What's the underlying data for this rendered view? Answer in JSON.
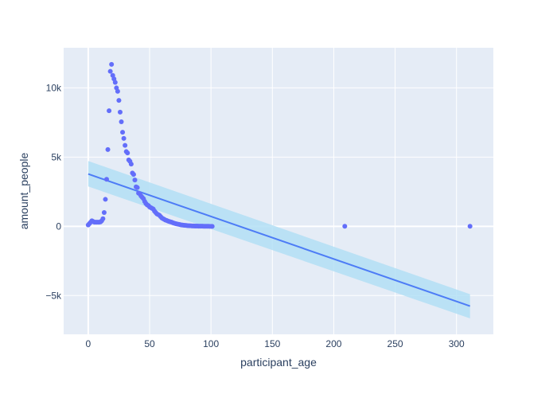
{
  "chart_data": {
    "type": "scatter",
    "title": "",
    "xlabel": "participant_age",
    "ylabel": "amount_people",
    "xlim": [
      -20,
      330
    ],
    "ylim": [
      -7800,
      12900
    ],
    "x_ticks": [
      0,
      50,
      100,
      150,
      200,
      250,
      300
    ],
    "x_tick_labels": [
      "0",
      "50",
      "100",
      "150",
      "200",
      "250",
      "300"
    ],
    "y_ticks": [
      -5000,
      0,
      5000,
      10000
    ],
    "y_tick_labels": [
      "−5k",
      "0",
      "5k",
      "10k"
    ],
    "grid": true,
    "legend": "none",
    "marker_color": "#636efa",
    "trend_color": "#4d7cf6",
    "band_color": "#b3dff5",
    "background_color": "#e5ecf6",
    "points": {
      "x": [
        0,
        1,
        2,
        3,
        4,
        5,
        6,
        7,
        8,
        9,
        10,
        11,
        12,
        13,
        14,
        15,
        16,
        17,
        18,
        19,
        20,
        21,
        22,
        23,
        24,
        25,
        26,
        27,
        28,
        29,
        30,
        31,
        32,
        33,
        34,
        35,
        36,
        37,
        38,
        39,
        40,
        41,
        42,
        43,
        44,
        45,
        46,
        47,
        48,
        49,
        50,
        51,
        52,
        53,
        54,
        55,
        56,
        57,
        58,
        59,
        60,
        61,
        62,
        63,
        64,
        65,
        66,
        67,
        68,
        69,
        70,
        71,
        72,
        73,
        74,
        75,
        76,
        77,
        78,
        79,
        80,
        81,
        82,
        83,
        84,
        85,
        86,
        87,
        88,
        89,
        90,
        91,
        92,
        93,
        94,
        95,
        96,
        97,
        98,
        99,
        100,
        101,
        209,
        311
      ],
      "y": [
        100,
        200,
        300,
        400,
        350,
        300,
        300,
        300,
        300,
        300,
        320,
        400,
        550,
        1000,
        1950,
        3400,
        5550,
        8350,
        11200,
        11700,
        10900,
        10650,
        10400,
        10000,
        9750,
        9100,
        8250,
        7550,
        6800,
        6350,
        5850,
        5400,
        5300,
        4800,
        4700,
        4500,
        3850,
        3750,
        3350,
        2850,
        2800,
        2400,
        2350,
        2200,
        2100,
        2000,
        1800,
        1650,
        1550,
        1500,
        1400,
        1350,
        1300,
        1250,
        1100,
        1000,
        900,
        850,
        800,
        700,
        600,
        550,
        500,
        450,
        420,
        380,
        350,
        320,
        300,
        260,
        230,
        200,
        180,
        160,
        140,
        120,
        100,
        90,
        80,
        70,
        60,
        50,
        45,
        40,
        35,
        30,
        25,
        22,
        20,
        18,
        16,
        14,
        12,
        10,
        8,
        6,
        5,
        4,
        3,
        2,
        2,
        1,
        5,
        5
      ]
    },
    "trend": {
      "x": [
        0,
        311
      ],
      "y": [
        3780,
        -5760
      ],
      "band_upper": [
        4720,
        -4900
      ],
      "band_lower": [
        2880,
        -6650
      ]
    }
  }
}
